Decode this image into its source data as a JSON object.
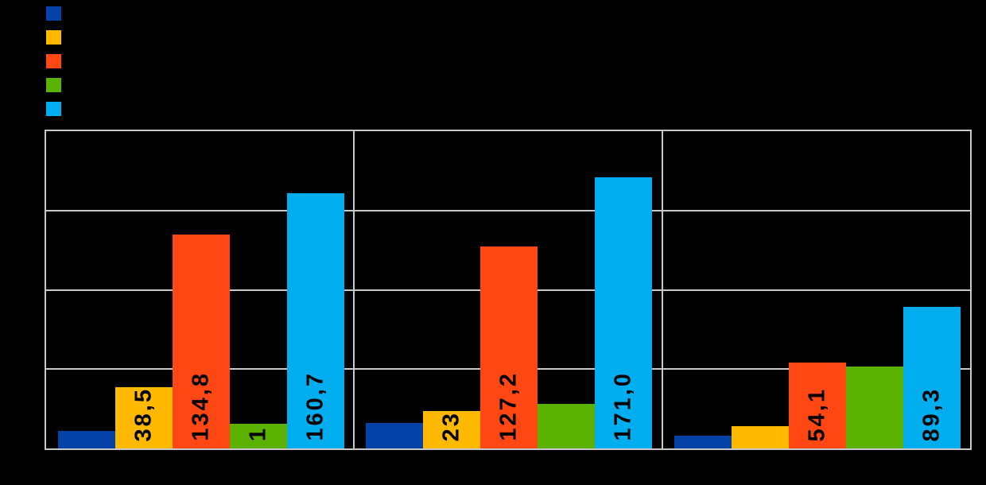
{
  "colors": {
    "background": "#000000",
    "grid": "#C9C9C9",
    "data_label_text": "#000000"
  },
  "chart_data": {
    "type": "bar",
    "title": "",
    "categories": [
      "",
      "",
      ""
    ],
    "series": [
      {
        "name": "",
        "color": "#0442A8",
        "values": [
          11.0,
          16.0,
          8.0
        ],
        "data_labels": [
          "",
          "",
          ""
        ]
      },
      {
        "name": "",
        "color": "#FFB900",
        "values": [
          38.5,
          23.4,
          13.9
        ],
        "data_labels": [
          "38,5",
          "23,",
          ""
        ]
      },
      {
        "name": "",
        "color": "#FF4713",
        "values": [
          134.8,
          127.2,
          54.1
        ],
        "data_labels": [
          "134,8",
          "127,2",
          "54,1"
        ]
      },
      {
        "name": "",
        "color": "#5CB200",
        "values": [
          15.4,
          27.9,
          51.7
        ],
        "data_labels": [
          "1",
          "",
          ""
        ]
      },
      {
        "name": "",
        "color": "#00AEEF",
        "values": [
          160.7,
          171.0,
          89.3
        ],
        "data_labels": [
          "160,7",
          "171,0",
          "89,3"
        ]
      }
    ],
    "ylim": [
      0,
      200
    ],
    "gridline_step": 50,
    "grid": true,
    "legend_position": "top-left",
    "axis_tick_labels_visible": false,
    "label_decimal_separator": ","
  }
}
